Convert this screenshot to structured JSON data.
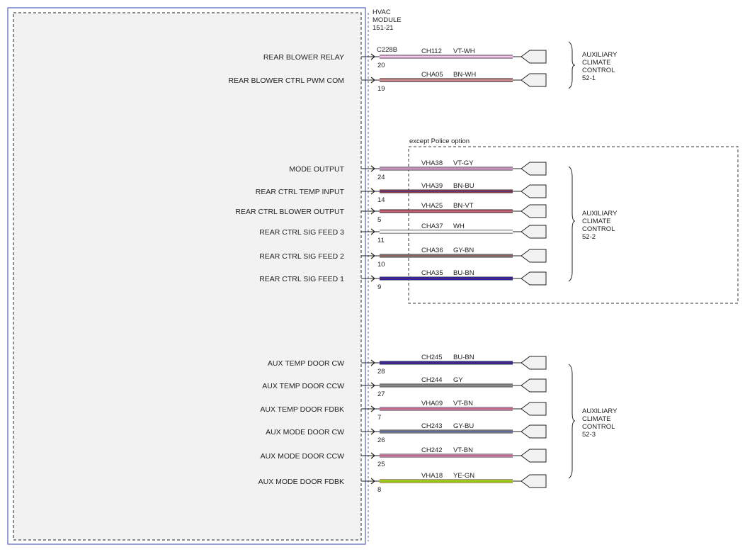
{
  "module": {
    "lines": [
      "HVAC",
      "MODULE",
      "151-21"
    ],
    "connector": "C228B"
  },
  "police_note": "except Police option",
  "colors": {
    "VT-WH": {
      "main": "#e39ad6",
      "stripe": "#ffffff"
    },
    "BN-WH": {
      "main": "#9c3a3a",
      "stripe": "#ffffff"
    },
    "VT-GY": {
      "main": "#df95d3",
      "stripe": "#999999"
    },
    "BN-BU": {
      "main": "#a53b3b",
      "stripe": "#2233aa"
    },
    "BN-VT": {
      "main": "#a53b3b",
      "stripe": "#d28acb"
    },
    "WH": {
      "main": "#ffffff",
      "stripe": "#ffffff"
    },
    "GY-BN": {
      "main": "#888888",
      "stripe": "#8b3b3b"
    },
    "BU-BN": {
      "main": "#1f22c8",
      "stripe": "#7a2b2b"
    },
    "GY": {
      "main": "#888888",
      "stripe": "#888888"
    },
    "VT-BN": {
      "main": "#e39ad6",
      "stripe": "#9c3a3a"
    },
    "GY-BU": {
      "main": "#8a8a8a",
      "stripe": "#3a4fb5"
    },
    "YE-GN": {
      "main": "#eef200",
      "stripe": "#3a9a3a"
    }
  },
  "circuits": [
    {
      "label": "REAR BLOWER RELAY",
      "pin": "20",
      "circuit": "CH112",
      "color": "VT-WH"
    },
    {
      "label": "REAR BLOWER CTRL PWM COM",
      "pin": "19",
      "circuit": "CHA05",
      "color": "BN-WH"
    },
    {
      "label": "MODE OUTPUT",
      "pin": "24",
      "circuit": "VHA38",
      "color": "VT-GY"
    },
    {
      "label": "REAR CTRL TEMP INPUT",
      "pin": "14",
      "circuit": "VHA39",
      "color": "BN-BU"
    },
    {
      "label": "REAR CTRL BLOWER OUTPUT",
      "pin": "5",
      "circuit": "VHA25",
      "color": "BN-VT"
    },
    {
      "label": "REAR CTRL SIG FEED 3",
      "pin": "11",
      "circuit": "CHA37",
      "color": "WH"
    },
    {
      "label": "REAR CTRL SIG FEED 2",
      "pin": "10",
      "circuit": "CHA36",
      "color": "GY-BN"
    },
    {
      "label": "REAR CTRL SIG FEED 1",
      "pin": "9",
      "circuit": "CHA35",
      "color": "BU-BN"
    },
    {
      "label": "AUX TEMP DOOR CW",
      "pin": "28",
      "circuit": "CH245",
      "color": "BU-BN"
    },
    {
      "label": "AUX TEMP DOOR CCW",
      "pin": "27",
      "circuit": "CH244",
      "color": "GY"
    },
    {
      "label": "AUX TEMP DOOR FDBK",
      "pin": "7",
      "circuit": "VHA09",
      "color": "VT-BN"
    },
    {
      "label": "AUX MODE DOOR CW",
      "pin": "26",
      "circuit": "CH243",
      "color": "GY-BU"
    },
    {
      "label": "AUX MODE DOOR CCW",
      "pin": "25",
      "circuit": "CH242",
      "color": "VT-BN"
    },
    {
      "label": "AUX MODE DOOR FDBK",
      "pin": "8",
      "circuit": "VHA18",
      "color": "YE-GN"
    }
  ],
  "destinations": [
    {
      "lines": [
        "AUXILIARY",
        "CLIMATE",
        "CONTROL",
        "52-1"
      ]
    },
    {
      "lines": [
        "AUXILIARY",
        "CLIMATE",
        "CONTROL",
        "52-2"
      ]
    },
    {
      "lines": [
        "AUXILIARY",
        "CLIMATE",
        "CONTROL",
        "52-3"
      ]
    }
  ]
}
